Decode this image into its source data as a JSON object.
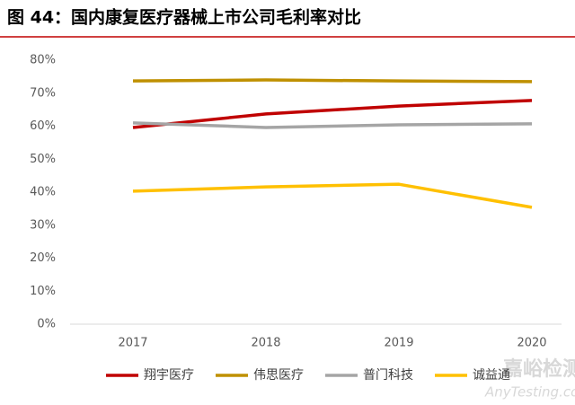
{
  "chart_data": {
    "type": "line",
    "title": "图 44：国内康复医疗器械上市公司毛利率对比",
    "categories": [
      "2017",
      "2018",
      "2019",
      "2020"
    ],
    "series": [
      {
        "name": "翔宇医疗",
        "color": "#c00000",
        "values": [
          59.6,
          63.7,
          66.1,
          67.8
        ]
      },
      {
        "name": "伟思医疗",
        "color": "#bf9000",
        "values": [
          73.7,
          74.0,
          73.7,
          73.5
        ]
      },
      {
        "name": "普门科技",
        "color": "#a5a5a5",
        "values": [
          61.0,
          59.6,
          60.4,
          60.7
        ]
      },
      {
        "name": "诚益通",
        "color": "#ffc000",
        "values": [
          40.3,
          41.6,
          42.4,
          35.4
        ]
      }
    ],
    "ylim": [
      0,
      80
    ],
    "yticks": [
      {
        "value": 0,
        "label": "0%"
      },
      {
        "value": 10,
        "label": "10%"
      },
      {
        "value": 20,
        "label": "20%"
      },
      {
        "value": 30,
        "label": "30%"
      },
      {
        "value": 40,
        "label": "40%"
      },
      {
        "value": 50,
        "label": "50%"
      },
      {
        "value": 60,
        "label": "60%"
      },
      {
        "value": 70,
        "label": "70%"
      },
      {
        "value": 80,
        "label": "80%"
      }
    ],
    "grid": false,
    "legend": "bottom",
    "watermark": [
      "嘉峪检测网",
      "AnyTesting.com"
    ]
  }
}
